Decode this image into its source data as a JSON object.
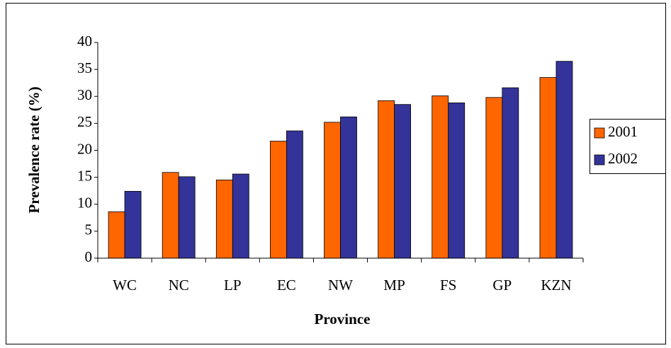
{
  "chart_data": {
    "type": "bar",
    "x_label": "Province",
    "y_label": "Prevalence rate (%)",
    "categories": [
      "WC",
      "NC",
      "LP",
      "EC",
      "NW",
      "MP",
      "FS",
      "GP",
      "KZN"
    ],
    "series": [
      {
        "name": "2001",
        "color": "#ff6600",
        "values": [
          8.6,
          15.9,
          14.5,
          21.7,
          25.2,
          29.2,
          30.1,
          29.8,
          33.5
        ]
      },
      {
        "name": "2002",
        "color": "#333399",
        "values": [
          12.4,
          15.1,
          15.6,
          23.6,
          26.2,
          28.5,
          28.8,
          31.6,
          36.5
        ]
      }
    ],
    "ylim": [
      0,
      40
    ],
    "yticks": [
      0,
      5,
      10,
      15,
      20,
      25,
      30,
      35,
      40
    ],
    "grid": false,
    "legend": "right"
  }
}
